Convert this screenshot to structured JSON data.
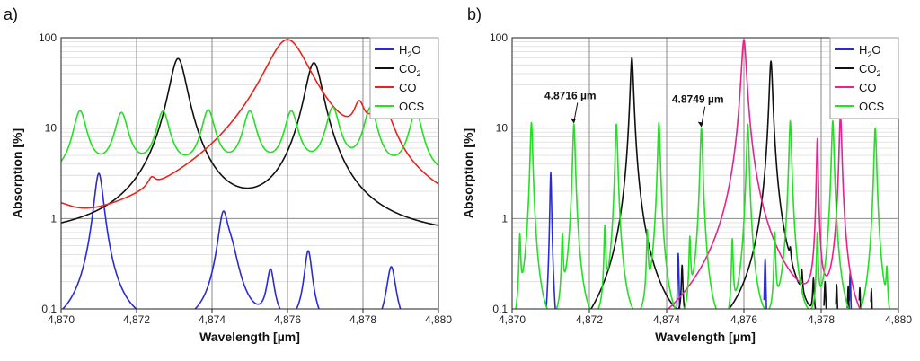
{
  "chart_data": [
    {
      "type": "line",
      "panel_label": "a)",
      "xlabel": "Wavelength [µm]",
      "ylabel": "Absorption [%]",
      "xlim": [
        4.87,
        4.88
      ],
      "ylim": [
        0.1,
        100
      ],
      "yscale": "log",
      "xticks": [
        4.87,
        4.872,
        4.874,
        4.876,
        4.878,
        4.88
      ],
      "xtick_labels": [
        "4,870",
        "4,872",
        "4,874",
        "4,876",
        "4,878",
        "4,880"
      ],
      "yticks": [
        0.1,
        1,
        10,
        100
      ],
      "ytick_labels": [
        "0,1",
        "1",
        "10",
        "100"
      ],
      "grid": true,
      "legend_position": "top-right",
      "series": [
        {
          "name": "H2O",
          "color": "#2b2bd6",
          "style": "peaks",
          "baseline": 0.05,
          "peaks": [
            [
              4.871,
              3.1,
              0.00012
            ],
            [
              4.8743,
              1.0,
              0.00013
            ],
            [
              4.8745,
              0.3,
              0.0002
            ],
            [
              4.87555,
              0.2,
              0.0001
            ],
            [
              4.87655,
              0.38,
              0.0001
            ],
            [
              4.87875,
              0.24,
              0.00012
            ]
          ]
        },
        {
          "name": "CO2",
          "color": "#111111",
          "style": "peaks",
          "baseline": 0.55,
          "peaks": [
            [
              4.8731,
              58,
              0.00022
            ],
            [
              4.8767,
              52,
              0.00022
            ]
          ]
        },
        {
          "name": "CO",
          "color": "#e8231e",
          "style": "peaks",
          "baseline": 0.05,
          "peaks": [
            [
              4.8698,
              0.7,
              0.0006
            ],
            [
              4.8724,
              0.6,
              0.00012
            ],
            [
              4.876,
              95,
              0.00055
            ],
            [
              4.8779,
              10,
              0.00015
            ],
            [
              4.8785,
              14,
              0.0003
            ]
          ]
        },
        {
          "name": "OCS",
          "color": "#22e022",
          "style": "peaks",
          "baseline": 2.6,
          "peaks": [
            [
              4.8705,
              12.5,
              0.00018
            ],
            [
              4.8716,
              11.5,
              0.00018
            ],
            [
              4.8727,
              12,
              0.00018
            ],
            [
              4.8739,
              12.5,
              0.00018
            ],
            [
              4.875,
              12,
              0.00018
            ],
            [
              4.8761,
              12,
              0.00018
            ],
            [
              4.8772,
              13.5,
              0.00018
            ],
            [
              4.8782,
              13.5,
              0.00018
            ],
            [
              4.8794,
              12,
              0.00018
            ]
          ]
        }
      ],
      "legend": [
        {
          "label": "H",
          "sub": "2",
          "rest": "O",
          "color": "#2b2bd6"
        },
        {
          "label": "CO",
          "sub": "2",
          "rest": "",
          "color": "#111111"
        },
        {
          "label": "CO",
          "sub": "",
          "rest": "",
          "color": "#e8231e"
        },
        {
          "label": "OCS",
          "sub": "",
          "rest": "",
          "color": "#22e022"
        }
      ],
      "annotations": []
    },
    {
      "type": "line",
      "panel_label": "b)",
      "xlabel": "Wavelength [µm]",
      "ylabel": "Absorption [%]",
      "xlim": [
        4.87,
        4.88
      ],
      "ylim": [
        0.1,
        100
      ],
      "yscale": "log",
      "xticks": [
        4.87,
        4.872,
        4.874,
        4.876,
        4.878,
        4.88
      ],
      "xtick_labels": [
        "4,870",
        "4,872",
        "4,874",
        "4,876",
        "4,878",
        "4,880"
      ],
      "yticks": [
        0.1,
        1,
        10,
        100
      ],
      "ytick_labels": [
        "0,1",
        "1",
        "10",
        "100"
      ],
      "grid": true,
      "legend_position": "top-right",
      "series": [
        {
          "name": "H2O",
          "color": "#2b2bd6",
          "style": "peaks",
          "baseline": 0.01,
          "peaks": [
            [
              4.871,
              3.2,
              2e-05
            ],
            [
              4.8743,
              0.4,
              2e-05
            ],
            [
              4.87655,
              0.35,
              2e-05
            ],
            [
              4.87875,
              0.24,
              2e-05
            ]
          ]
        },
        {
          "name": "CO2",
          "color": "#111111",
          "style": "peaks",
          "baseline": 0.01,
          "peaks": [
            [
              4.8731,
              60,
              4e-05
            ],
            [
              4.8767,
              55,
              4e-05
            ],
            [
              4.8744,
              0.22,
              2e-05
            ],
            [
              4.8772,
              0.12,
              2e-05
            ],
            [
              4.8775,
              0.12,
              2e-05
            ],
            [
              4.8778,
              0.13,
              2e-05
            ],
            [
              4.8781,
              0.14,
              2e-05
            ],
            [
              4.8784,
              0.14,
              2e-05
            ],
            [
              4.8787,
              0.14,
              2e-05
            ],
            [
              4.879,
              0.14,
              2e-05
            ],
            [
              4.8793,
              0.14,
              2e-05
            ]
          ]
        },
        {
          "name": "CO",
          "color": "#e8238c",
          "style": "peaks",
          "baseline": 0.01,
          "peaks": [
            [
              4.876,
              95,
              6e-05
            ],
            [
              4.8779,
              7.5,
              2e-05
            ],
            [
              4.8785,
              14,
              3e-05
            ]
          ]
        },
        {
          "name": "OCS",
          "color": "#22e022",
          "style": "peaks",
          "baseline": 0.01,
          "peaks": [
            [
              4.8705,
              11.5,
              3e-05
            ],
            [
              4.8716,
              11,
              3e-05
            ],
            [
              4.8727,
              11,
              3e-05
            ],
            [
              4.8738,
              11.5,
              3e-05
            ],
            [
              4.8749,
              10,
              3e-05
            ],
            [
              4.8761,
              11,
              3e-05
            ],
            [
              4.8772,
              12,
              3e-05
            ],
            [
              4.8783,
              12,
              3e-05
            ],
            [
              4.8794,
              10,
              3e-05
            ],
            [
              4.8702,
              0.55,
              2e-05
            ],
            [
              4.8713,
              0.55,
              2e-05
            ],
            [
              4.8724,
              0.7,
              2e-05
            ],
            [
              4.8735,
              0.6,
              2e-05
            ],
            [
              4.8746,
              0.5,
              2e-05
            ],
            [
              4.8757,
              0.5,
              2e-05
            ],
            [
              4.8768,
              0.6,
              2e-05
            ],
            [
              4.8779,
              0.6,
              2e-05
            ],
            [
              4.8797,
              0.18,
              2e-05
            ]
          ]
        }
      ],
      "legend": [
        {
          "label": "H",
          "sub": "2",
          "rest": "O",
          "color": "#2b2bd6"
        },
        {
          "label": "CO",
          "sub": "2",
          "rest": "",
          "color": "#111111"
        },
        {
          "label": "CO",
          "sub": "",
          "rest": "",
          "color": "#e8238c"
        },
        {
          "label": "OCS",
          "sub": "",
          "rest": "",
          "color": "#22e022"
        }
      ],
      "annotations": [
        {
          "text": "4.8716 µm",
          "x": 4.8716,
          "y": 11
        },
        {
          "text": "4.8749 µm",
          "x": 4.8749,
          "y": 10
        }
      ]
    }
  ]
}
